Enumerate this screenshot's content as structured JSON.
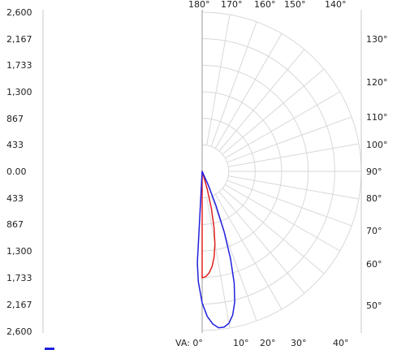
{
  "chart_data": {
    "type": "polar",
    "title": "",
    "radial_axis": {
      "tick_labels_top": [
        "2,600",
        "2,167",
        "1,733",
        "1,300",
        "867",
        "433",
        "0.00"
      ],
      "tick_labels_bottom": [
        "433",
        "867",
        "1,300",
        "1,733",
        "2,167",
        "2,600"
      ],
      "max": 2600,
      "ticks": [
        0,
        433,
        867,
        1300,
        1733,
        2167,
        2600
      ]
    },
    "angle_labels_top": [
      {
        "text": "180°",
        "angle": 180
      },
      {
        "text": "170°",
        "angle": 170
      },
      {
        "text": "160°",
        "angle": 160
      },
      {
        "text": "150°",
        "angle": 150
      },
      {
        "text": "140°",
        "angle": 140
      }
    ],
    "angle_labels_right": [
      {
        "text": "130°",
        "angle": 130
      },
      {
        "text": "120°",
        "angle": 120
      },
      {
        "text": "110°",
        "angle": 110
      },
      {
        "text": "100°",
        "angle": 100
      },
      {
        "text": "90°",
        "angle": 90
      },
      {
        "text": "80°",
        "angle": 80
      },
      {
        "text": "70°",
        "angle": 70
      },
      {
        "text": "60°",
        "angle": 60
      },
      {
        "text": "50°",
        "angle": 50
      }
    ],
    "angle_labels_bottom": [
      {
        "text": "VA: 0°",
        "angle": 0
      },
      {
        "text": "10°",
        "angle": 10
      },
      {
        "text": "20°",
        "angle": 20
      },
      {
        "text": "30°",
        "angle": 30
      },
      {
        "text": "40°",
        "angle": 40
      }
    ],
    "series": [
      {
        "color": "#e02020",
        "points": [
          {
            "angle": 0,
            "value": 1740
          },
          {
            "angle": 2,
            "value": 1720
          },
          {
            "angle": 4,
            "value": 1660
          },
          {
            "angle": 6,
            "value": 1560
          },
          {
            "angle": 8,
            "value": 1410
          },
          {
            "angle": 10,
            "value": 1200
          },
          {
            "angle": 12,
            "value": 930
          },
          {
            "angle": 14,
            "value": 620
          },
          {
            "angle": 16,
            "value": 300
          },
          {
            "angle": 18,
            "value": 40
          },
          {
            "angle": 20,
            "value": 0
          }
        ]
      },
      {
        "color": "#2020e0",
        "points": [
          {
            "angle": -3,
            "value": 1500
          },
          {
            "angle": -2,
            "value": 1800
          },
          {
            "angle": 0,
            "value": 2150
          },
          {
            "angle": 2,
            "value": 2370
          },
          {
            "angle": 4,
            "value": 2500
          },
          {
            "angle": 6,
            "value": 2570
          },
          {
            "angle": 8,
            "value": 2570
          },
          {
            "angle": 10,
            "value": 2520
          },
          {
            "angle": 12,
            "value": 2400
          },
          {
            "angle": 14,
            "value": 2200
          },
          {
            "angle": 16,
            "value": 1900
          },
          {
            "angle": 18,
            "value": 1500
          },
          {
            "angle": 20,
            "value": 1050
          },
          {
            "angle": 22,
            "value": 600
          },
          {
            "angle": 24,
            "value": 250
          },
          {
            "angle": 26,
            "value": 0
          }
        ]
      }
    ],
    "grid": true,
    "colors": {
      "grid": "#d8d8d8",
      "axis": "#9a9a9a",
      "legend_swatch": "#2020e0"
    }
  }
}
